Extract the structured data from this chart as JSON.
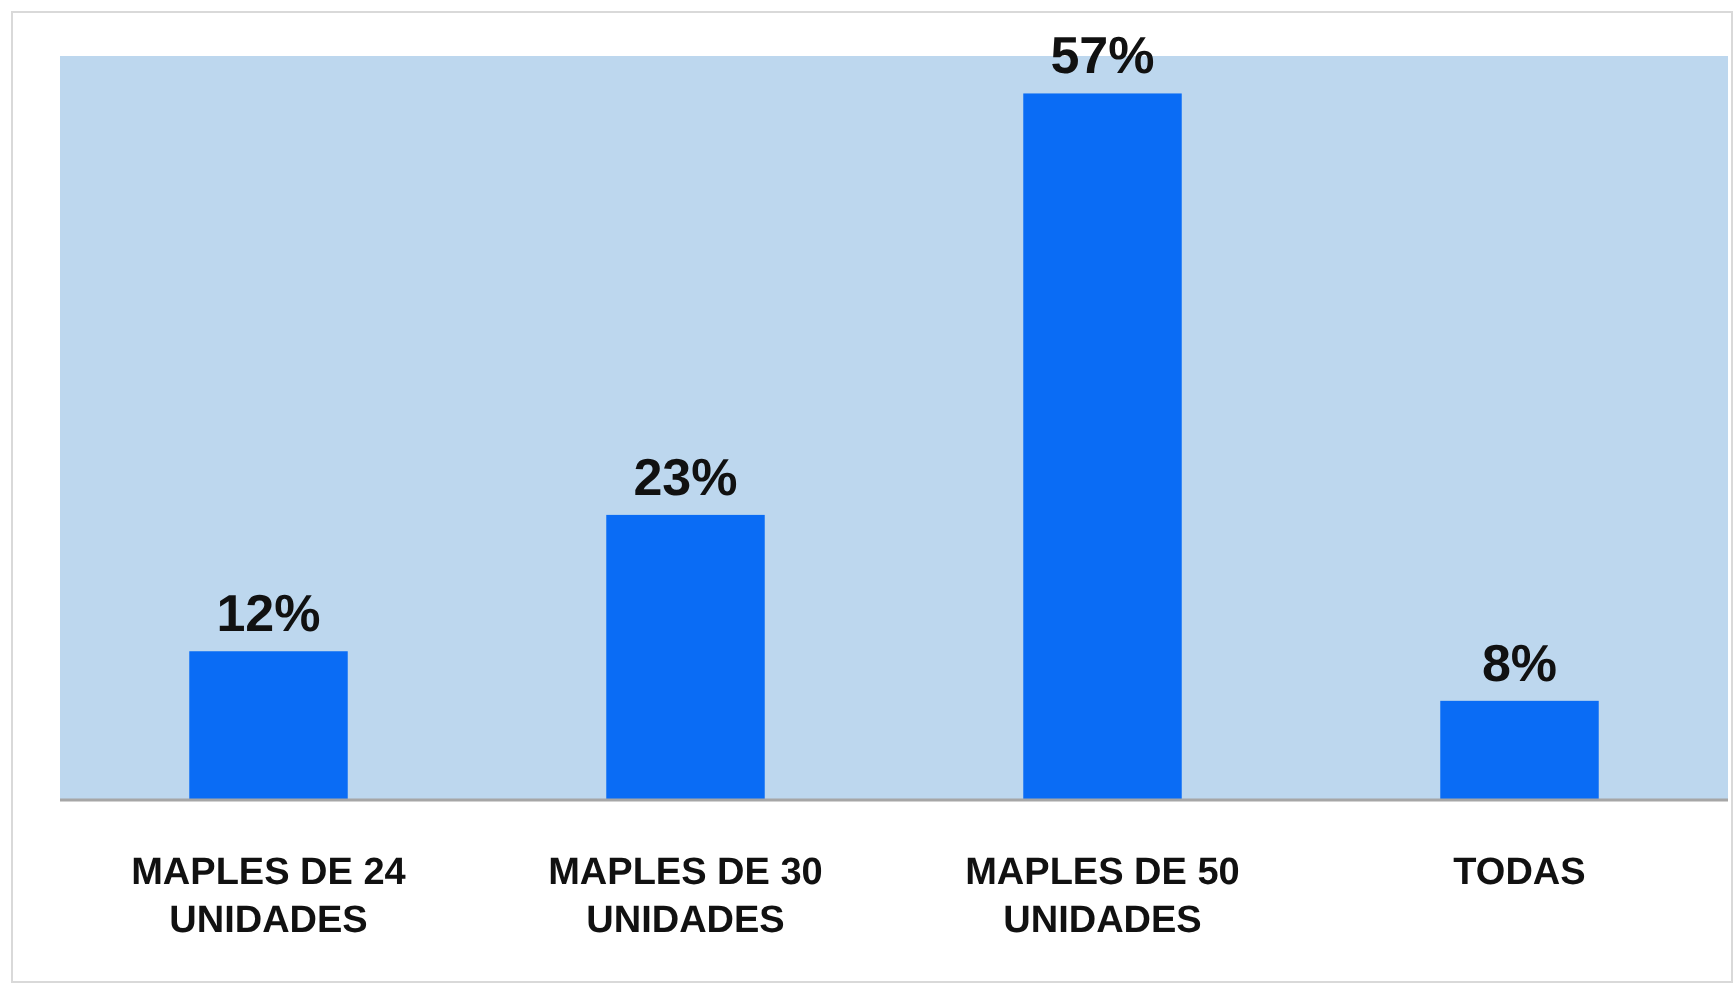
{
  "chart_data": {
    "type": "bar",
    "categories": [
      "MAPLES DE 24 UNIDADES",
      "MAPLES DE 30 UNIDADES",
      "MAPLES DE 50 UNIDADES",
      "TODAS"
    ],
    "values": [
      12,
      23,
      57,
      8
    ],
    "value_labels": [
      "12%",
      "23%",
      "57%",
      "8%"
    ],
    "color": "#0a6cf5"
  }
}
